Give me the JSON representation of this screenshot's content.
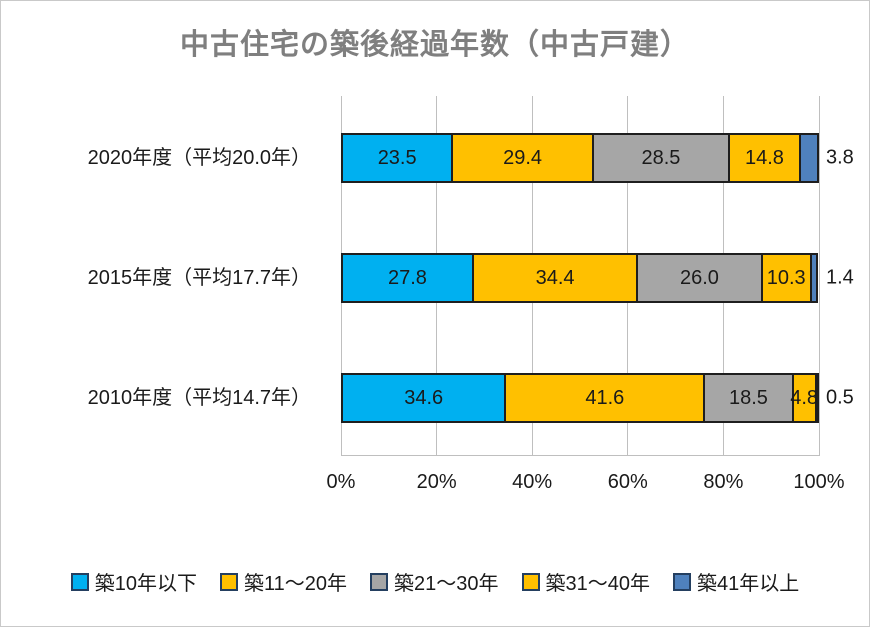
{
  "chart_data": {
    "type": "bar",
    "orientation": "horizontal",
    "stacked": true,
    "title": "中古住宅の築後経過年数（中古戸建）",
    "title_color": "#7f7f7f",
    "categories": [
      "2020年度（平均20.0年）",
      "2015年度（平均17.7年）",
      "2010年度（平均14.7年）"
    ],
    "series": [
      {
        "name": "築10年以下",
        "color": "#00B0F0",
        "values": [
          23.5,
          27.8,
          34.6
        ]
      },
      {
        "name": "築11～20年",
        "color": "#FFC000",
        "values": [
          29.4,
          34.4,
          41.6
        ]
      },
      {
        "name": "築21～30年",
        "color": "#A6A6A6",
        "values": [
          28.5,
          26.0,
          18.5
        ]
      },
      {
        "name": "築31～40年",
        "color": "#FFC000",
        "values": [
          14.8,
          10.3,
          4.8
        ]
      },
      {
        "name": "築41年以上",
        "color": "#4F81BD",
        "values": [
          3.8,
          1.4,
          0.5
        ]
      }
    ],
    "value_labels": [
      [
        "23.5",
        "29.4",
        "28.5",
        "14.8",
        "3.8"
      ],
      [
        "27.8",
        "34.4",
        "26.0",
        "10.3",
        "1.4"
      ],
      [
        "34.6",
        "41.6",
        "18.5",
        "4.8",
        "0.5"
      ]
    ],
    "outside_label_series_index": 4,
    "x_ticks": [
      "0%",
      "20%",
      "40%",
      "60%",
      "80%",
      "100%"
    ],
    "xlim": [
      0,
      100
    ],
    "grid": true,
    "legend_position": "bottom",
    "colors": {
      "gridline": "#bfbfbf",
      "bar_border": "#1e1e1e",
      "text": "#1a1a1a"
    }
  }
}
